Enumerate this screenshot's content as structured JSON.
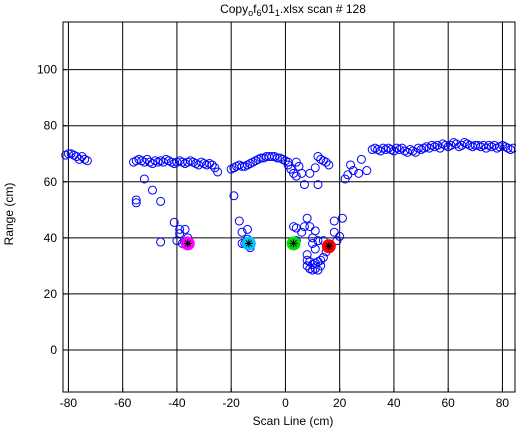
{
  "chart_data": {
    "type": "scatter",
    "title": "Copy",
    "title_parts": [
      {
        "text": "Copy",
        "sub": false
      },
      {
        "text": "o",
        "sub": true
      },
      {
        "text": "f",
        "sub": false
      },
      {
        "text": "6",
        "sub": true
      },
      {
        "text": "01",
        "sub": false
      },
      {
        "text": "1",
        "sub": true
      },
      {
        "text": ".xlsx scan # 128",
        "sub": false
      }
    ],
    "xlabel": "Scan Line (cm)",
    "ylabel": "Range (cm)",
    "xlim": [
      -82,
      85
    ],
    "ylim": [
      -15,
      117
    ],
    "xticks": [
      -80,
      -60,
      -40,
      -20,
      0,
      20,
      40,
      60,
      80
    ],
    "yticks": [
      0,
      20,
      40,
      60,
      80,
      100
    ],
    "grid": true,
    "legend": "none",
    "colors": {
      "scan_points": "#0000ff",
      "magenta_marker": "#ff00ff",
      "cyan_marker": "#00c8ff",
      "green_marker": "#00dd00",
      "red_marker": "#ff0000",
      "star": "#000000"
    },
    "series": [
      {
        "marker": "circle",
        "color": "#0000ff",
        "points": [
          [
            -81,
            69.5
          ],
          [
            -80,
            70
          ],
          [
            -79,
            70
          ],
          [
            -78,
            69.5
          ],
          [
            -77,
            69
          ],
          [
            -76,
            68
          ],
          [
            -75,
            69
          ],
          [
            -74,
            68
          ],
          [
            -73,
            67.5
          ],
          [
            -56,
            67
          ],
          [
            -55,
            67.5
          ],
          [
            -54,
            68
          ],
          [
            -53,
            67.5
          ],
          [
            -52,
            67
          ],
          [
            -51,
            68
          ],
          [
            -50,
            67
          ],
          [
            -49,
            66.5
          ],
          [
            -48,
            67.5
          ],
          [
            -47,
            67
          ],
          [
            -46,
            67.5
          ],
          [
            -45,
            67
          ],
          [
            -44,
            68
          ],
          [
            -43,
            67.5
          ],
          [
            -42,
            67
          ],
          [
            -41,
            66.5
          ],
          [
            -40,
            67
          ],
          [
            -39,
            67.5
          ],
          [
            -38,
            67
          ],
          [
            -37,
            66.5
          ],
          [
            -36,
            67
          ],
          [
            -35,
            67.5
          ],
          [
            -34,
            67
          ],
          [
            -33,
            66.5
          ],
          [
            -32,
            66
          ],
          [
            -31,
            67
          ],
          [
            -30,
            66.5
          ],
          [
            -29,
            66
          ],
          [
            -28,
            66.5
          ],
          [
            -27,
            66
          ],
          [
            -26,
            65
          ],
          [
            -25,
            63.5
          ],
          [
            -52,
            61
          ],
          [
            -49,
            57
          ],
          [
            -46,
            53
          ],
          [
            -55,
            53.5
          ],
          [
            -55,
            52.5
          ],
          [
            -41,
            45.5
          ],
          [
            -39,
            43
          ],
          [
            -39,
            41.5
          ],
          [
            -37,
            43
          ],
          [
            -36,
            40
          ],
          [
            -46,
            38.5
          ],
          [
            -40,
            39
          ],
          [
            -38,
            38
          ],
          [
            -37,
            38.5
          ],
          [
            -20,
            64.5
          ],
          [
            -19,
            65
          ],
          [
            -18,
            65.5
          ],
          [
            -17,
            66
          ],
          [
            -16,
            65.5
          ],
          [
            -15,
            65.5
          ],
          [
            -14,
            66
          ],
          [
            -13,
            66.5
          ],
          [
            -12,
            67
          ],
          [
            -11,
            67.5
          ],
          [
            -10,
            68
          ],
          [
            -9,
            68.5
          ],
          [
            -8,
            68.5
          ],
          [
            -7,
            69
          ],
          [
            -6,
            69
          ],
          [
            -5,
            69
          ],
          [
            -4,
            69
          ],
          [
            -3,
            68.5
          ],
          [
            -2,
            68.5
          ],
          [
            -1,
            68
          ],
          [
            0,
            67.5
          ],
          [
            1,
            67
          ],
          [
            1,
            66
          ],
          [
            2,
            64.5
          ],
          [
            3,
            63
          ],
          [
            4,
            62
          ],
          [
            -19,
            55
          ],
          [
            -17,
            46
          ],
          [
            -16,
            42
          ],
          [
            -14,
            43
          ],
          [
            -14,
            39.5
          ],
          [
            -16,
            38
          ],
          [
            -15,
            38
          ],
          [
            -13,
            37.5
          ],
          [
            -13,
            36.5
          ],
          [
            3,
            44
          ],
          [
            4,
            43.5
          ],
          [
            4,
            39
          ],
          [
            6,
            42
          ],
          [
            7,
            44
          ],
          [
            8,
            47
          ],
          [
            9,
            44
          ],
          [
            10,
            40
          ],
          [
            10,
            38
          ],
          [
            11,
            42.5
          ],
          [
            12,
            39
          ],
          [
            8,
            34
          ],
          [
            8,
            32
          ],
          [
            9,
            31.5
          ],
          [
            10,
            30.5
          ],
          [
            11,
            31
          ],
          [
            12,
            31.5
          ],
          [
            13,
            32
          ],
          [
            8,
            30
          ],
          [
            9,
            29
          ],
          [
            10,
            28.5
          ],
          [
            11,
            29
          ],
          [
            12,
            28.5
          ],
          [
            13,
            30
          ],
          [
            14,
            33
          ],
          [
            15,
            35
          ],
          [
            14,
            39
          ],
          [
            11,
            36
          ],
          [
            12,
            69
          ],
          [
            13,
            68
          ],
          [
            14,
            67.5
          ],
          [
            15,
            67
          ],
          [
            16,
            66
          ],
          [
            12,
            59
          ],
          [
            9,
            63
          ],
          [
            11,
            65
          ],
          [
            7,
            59
          ],
          [
            6,
            63
          ],
          [
            5,
            65.5
          ],
          [
            4,
            67
          ],
          [
            18,
            46
          ],
          [
            18,
            42
          ],
          [
            19,
            39
          ],
          [
            20,
            40.5
          ],
          [
            21,
            47
          ],
          [
            22,
            61
          ],
          [
            23,
            62.5
          ],
          [
            24,
            66
          ],
          [
            25,
            64
          ],
          [
            27,
            63
          ],
          [
            28,
            68
          ],
          [
            30,
            64
          ],
          [
            32,
            71.5
          ],
          [
            33,
            72
          ],
          [
            34,
            71.5
          ],
          [
            35,
            71
          ],
          [
            36,
            72
          ],
          [
            37,
            71.5
          ],
          [
            38,
            72
          ],
          [
            39,
            71.5
          ],
          [
            40,
            71
          ],
          [
            41,
            72
          ],
          [
            42,
            71.5
          ],
          [
            43,
            72
          ],
          [
            44,
            71
          ],
          [
            45,
            70.5
          ],
          [
            46,
            71.5
          ],
          [
            47,
            71
          ],
          [
            48,
            70.5
          ],
          [
            49,
            72
          ],
          [
            50,
            71.5
          ],
          [
            51,
            72
          ],
          [
            52,
            72.5
          ],
          [
            53,
            72
          ],
          [
            54,
            73
          ],
          [
            55,
            72.5
          ],
          [
            56,
            73
          ],
          [
            57,
            72
          ],
          [
            58,
            73.5
          ],
          [
            59,
            73
          ],
          [
            60,
            72.5
          ],
          [
            61,
            73
          ],
          [
            62,
            74
          ],
          [
            63,
            73.5
          ],
          [
            64,
            72.5
          ],
          [
            65,
            73
          ],
          [
            66,
            74
          ],
          [
            67,
            73.5
          ],
          [
            68,
            73
          ],
          [
            69,
            72.5
          ],
          [
            70,
            73
          ],
          [
            71,
            73
          ],
          [
            72,
            72.5
          ],
          [
            73,
            73
          ],
          [
            74,
            72
          ],
          [
            75,
            73
          ],
          [
            76,
            72.5
          ],
          [
            77,
            73
          ],
          [
            78,
            72
          ],
          [
            79,
            72.5
          ],
          [
            80,
            73
          ],
          [
            81,
            72.5
          ],
          [
            82,
            72
          ],
          [
            83,
            71.5
          ],
          [
            84,
            72
          ]
        ]
      },
      {
        "marker": "filled-circle",
        "color": "#ff00ff",
        "points": [
          [
            -36,
            38
          ]
        ]
      },
      {
        "marker": "filled-circle",
        "color": "#00c8ff",
        "points": [
          [
            -13.5,
            38
          ]
        ]
      },
      {
        "marker": "filled-circle",
        "color": "#00dd00",
        "points": [
          [
            3,
            38
          ]
        ]
      },
      {
        "marker": "filled-circle",
        "color": "#ff0000",
        "points": [
          [
            16,
            37
          ]
        ]
      },
      {
        "marker": "star",
        "color": "#000000",
        "points": [
          [
            -36,
            38
          ],
          [
            -13.5,
            38
          ],
          [
            3,
            38
          ],
          [
            16,
            37
          ]
        ]
      }
    ]
  }
}
